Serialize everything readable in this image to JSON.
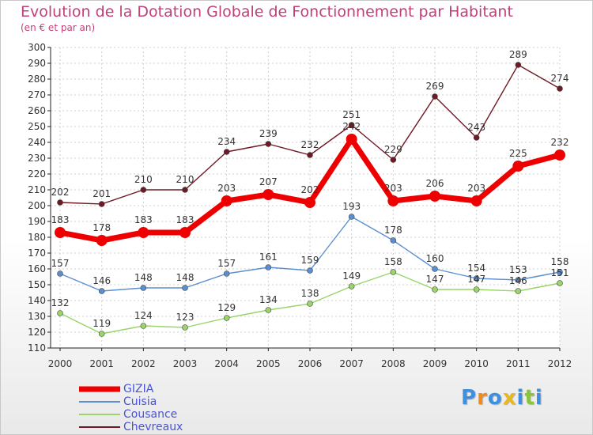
{
  "chart_data": {
    "type": "line",
    "title": "Evolution de la Dotation Globale de Fonctionnement par Habitant",
    "subtitle": "(en € et par an)",
    "x": [
      "2000",
      "2001",
      "2002",
      "2003",
      "2004",
      "2005",
      "2006",
      "2007",
      "2008",
      "2009",
      "2010",
      "2011",
      "2012"
    ],
    "ylim": [
      110,
      300
    ],
    "yticks": [
      110,
      120,
      130,
      140,
      150,
      160,
      170,
      180,
      190,
      200,
      210,
      220,
      230,
      240,
      250,
      260,
      270,
      280,
      290,
      300
    ],
    "grid": true,
    "legend_position": "bottom-left",
    "series": [
      {
        "name": "GIZIA",
        "color": "#ee0000",
        "values": [
          183,
          178,
          183,
          183,
          203,
          207,
          202,
          242,
          203,
          206,
          203,
          225,
          232
        ]
      },
      {
        "name": "Cuisia",
        "color": "#5b8fd0",
        "values": [
          157,
          146,
          148,
          148,
          157,
          161,
          159,
          193,
          178,
          160,
          154,
          153,
          158
        ]
      },
      {
        "name": "Cousance",
        "color": "#9ad46a",
        "values": [
          132,
          119,
          124,
          123,
          129,
          134,
          138,
          149,
          158,
          147,
          147,
          146,
          151
        ]
      },
      {
        "name": "Chevreaux",
        "color": "#6e1a24",
        "values": [
          202,
          201,
          210,
          210,
          234,
          239,
          232,
          251,
          229,
          269,
          243,
          289,
          274
        ]
      }
    ]
  },
  "logo": {
    "letters": [
      "P",
      "r",
      "o",
      "x",
      "i",
      "t",
      "i"
    ],
    "colors": [
      "#3d8fe0",
      "#f08a1c",
      "#3d8fe0",
      "#e8b81c",
      "#3d8fe0",
      "#8ac43a",
      "#3d8fe0"
    ]
  }
}
